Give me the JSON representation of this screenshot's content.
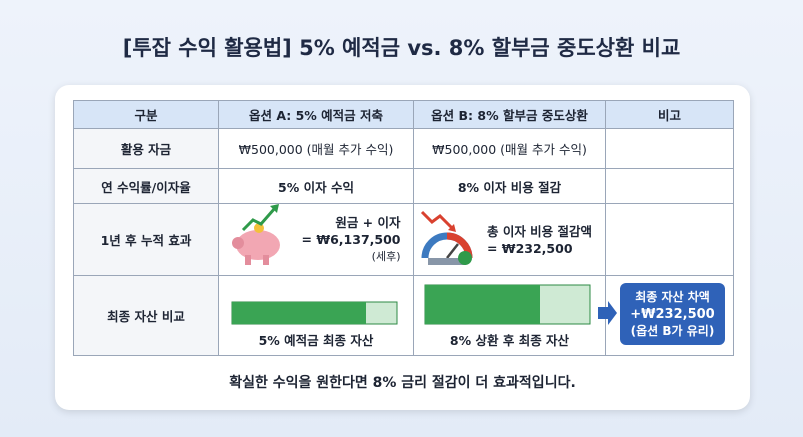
{
  "title": "[투잡 수익 활용법] 5% 예적금 vs. 8% 할부금 중도상환 비교",
  "table": {
    "headers": [
      "구분",
      "옵션 A: 5% 예적금 저축",
      "옵션 B: 8% 할부금 중도상환",
      "비고"
    ],
    "rows": [
      {
        "label": "활용 자금",
        "a": [
          "₩500,000 (매월 추가 수익)"
        ],
        "b": [
          "₩500,000 (매월 추가 수익)"
        ]
      },
      {
        "label": "연 수익률/이자율",
        "a": [
          "5% 이자 수익"
        ],
        "b": [
          "8% 이자 비용 절감"
        ]
      },
      {
        "label": "1년 후 누적 효과",
        "a": [
          "원금 + 이자",
          "= ₩6,137,500",
          "(세후)"
        ],
        "b": [
          "총 이자 비용 절감액",
          "= ₩232,500"
        ]
      },
      {
        "label": "최종 자산 비교",
        "a": [
          "5% 예적금 최종 자산"
        ],
        "b": [
          "8% 상환 후 최종 자산"
        ],
        "note": [
          "최종 자산 차액",
          "+₩232,500",
          "(옵션 B가 유리)"
        ]
      }
    ]
  },
  "footer": "확실한 수익을 원한다면 8% 금리 절감이 더 효과적입니다."
}
